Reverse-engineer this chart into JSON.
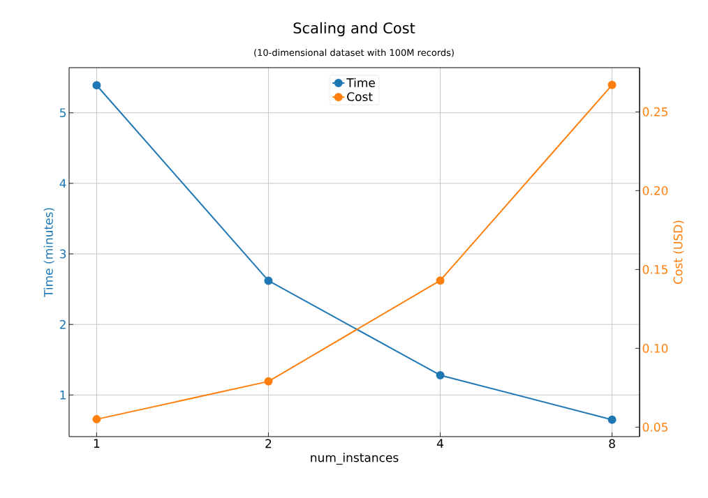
{
  "chart_data": {
    "type": "line",
    "title": "Scaling and Cost",
    "subtitle": "(10-dimensional dataset with 100M records)",
    "xlabel": "num_instances",
    "ylabel": "Time (minutes)",
    "y2label": "Cost (USD)",
    "x": [
      1,
      2,
      4,
      8
    ],
    "xlim": [
      0.895,
      8.94
    ],
    "xticks": [
      1,
      2,
      4,
      8
    ],
    "log": "x",
    "series": [
      {
        "name": "Time",
        "color": "#1f77b4",
        "values": [
          5.39,
          2.62,
          1.28,
          0.65
        ]
      },
      {
        "name": "Cost",
        "color": "#ff7f0e",
        "values": [
          0.055,
          0.079,
          0.143,
          0.267
        ],
        "axis": "y2"
      }
    ],
    "ylim": [
      0.41,
      5.64
    ],
    "yticks": [
      1,
      2,
      3,
      4,
      5
    ],
    "y2lim": [
      0.044,
      0.278
    ],
    "y2ticks": [
      0.05,
      {
        "value": 0.1,
        "label": "0.10"
      },
      0.15,
      {
        "value": 0.2,
        "label": "0.20"
      },
      0.25
    ],
    "grid": true,
    "legend": "top center",
    "marker": "circle",
    "line_style": "solid"
  }
}
